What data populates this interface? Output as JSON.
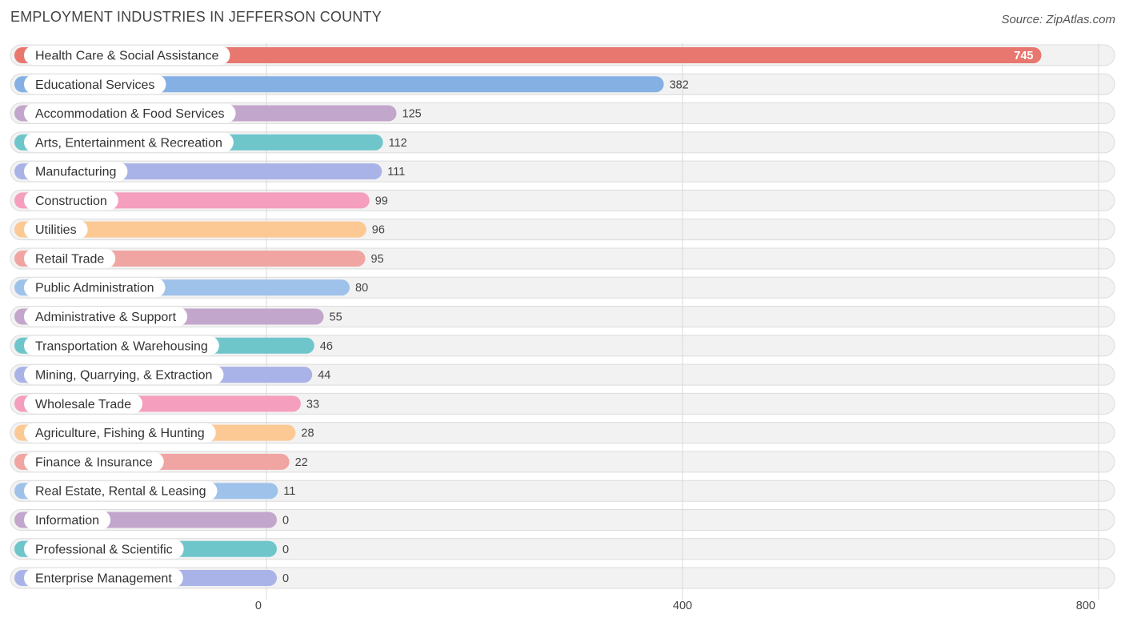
{
  "header": {
    "title": "EMPLOYMENT INDUSTRIES IN JEFFERSON COUNTY",
    "source": "Source: ZipAtlas.com"
  },
  "chart_data": {
    "type": "bar",
    "orientation": "horizontal",
    "title": "EMPLOYMENT INDUSTRIES IN JEFFERSON COUNTY",
    "xlabel": "",
    "ylabel": "",
    "xlim": [
      0,
      800
    ],
    "ticks": [
      0,
      400,
      800
    ],
    "tick_labels": [
      "0",
      "400",
      "800"
    ],
    "grid": true,
    "categories": [
      "Health Care & Social Assistance",
      "Educational Services",
      "Accommodation & Food Services",
      "Arts, Entertainment & Recreation",
      "Manufacturing",
      "Construction",
      "Utilities",
      "Retail Trade",
      "Public Administration",
      "Administrative & Support",
      "Transportation & Warehousing",
      "Mining, Quarrying, & Extraction",
      "Wholesale Trade",
      "Agriculture, Fishing & Hunting",
      "Finance & Insurance",
      "Real Estate, Rental & Leasing",
      "Information",
      "Professional & Scientific",
      "Enterprise Management"
    ],
    "values": [
      745,
      382,
      125,
      112,
      111,
      99,
      96,
      95,
      80,
      55,
      46,
      44,
      33,
      28,
      22,
      11,
      0,
      0,
      0
    ],
    "value_labels": [
      "745",
      "382",
      "125",
      "112",
      "111",
      "99",
      "96",
      "95",
      "80",
      "55",
      "46",
      "44",
      "33",
      "28",
      "22",
      "11",
      "0",
      "0",
      "0"
    ],
    "colors": [
      "#e8776f",
      "#85b0e3",
      "#c3a6cb",
      "#6ec6cb",
      "#a9b3e8",
      "#f59ebd",
      "#fcc994",
      "#f0a5a2",
      "#9fc2ea",
      "#c3a6cb",
      "#6ec6cb",
      "#a9b3e8",
      "#f59ebd",
      "#fcc994",
      "#f0a5a2",
      "#9fc2ea",
      "#c3a6cb",
      "#6ec6cb",
      "#a9b3e8"
    ]
  }
}
